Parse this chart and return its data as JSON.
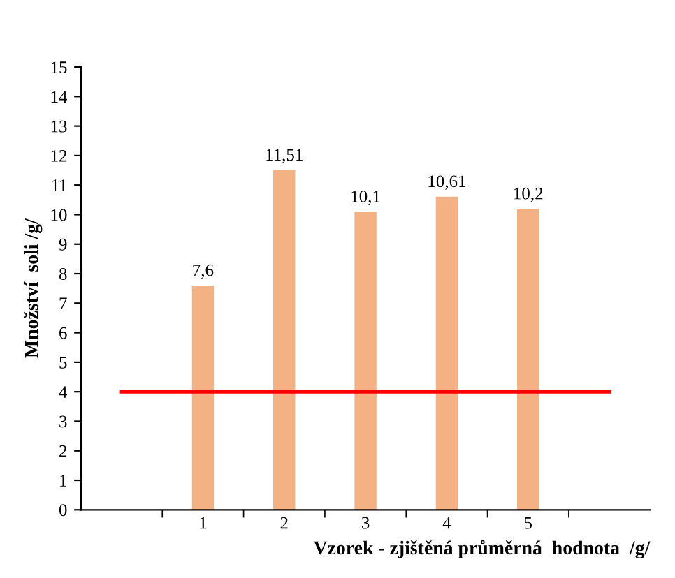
{
  "chart_data": {
    "type": "bar",
    "xlabel": "Vzorek - zjištěná průměrná  hodnota  /g/",
    "ylabel": "Množství  soli /g/",
    "categories": [
      null,
      "1",
      "2",
      "3",
      "4",
      "5",
      null
    ],
    "series": [
      {
        "color": "#f4b183",
        "values": [
          null,
          7.6,
          11.51,
          10.1,
          10.61,
          10.2,
          null
        ],
        "value_labels": [
          null,
          "7,6",
          "11,51",
          "10,1",
          "10,61",
          "10,2",
          null
        ]
      },
      {
        "type": "line",
        "color": "#ff0000",
        "values": [
          4,
          4,
          4,
          4,
          4,
          4,
          4
        ],
        "marker": "none"
      }
    ],
    "ylim": [
      0,
      15
    ],
    "yticks": [
      0,
      1,
      2,
      3,
      4,
      5,
      6,
      7,
      8,
      9,
      10,
      11,
      12,
      13,
      14,
      15
    ],
    "grid": false,
    "legend": false
  }
}
